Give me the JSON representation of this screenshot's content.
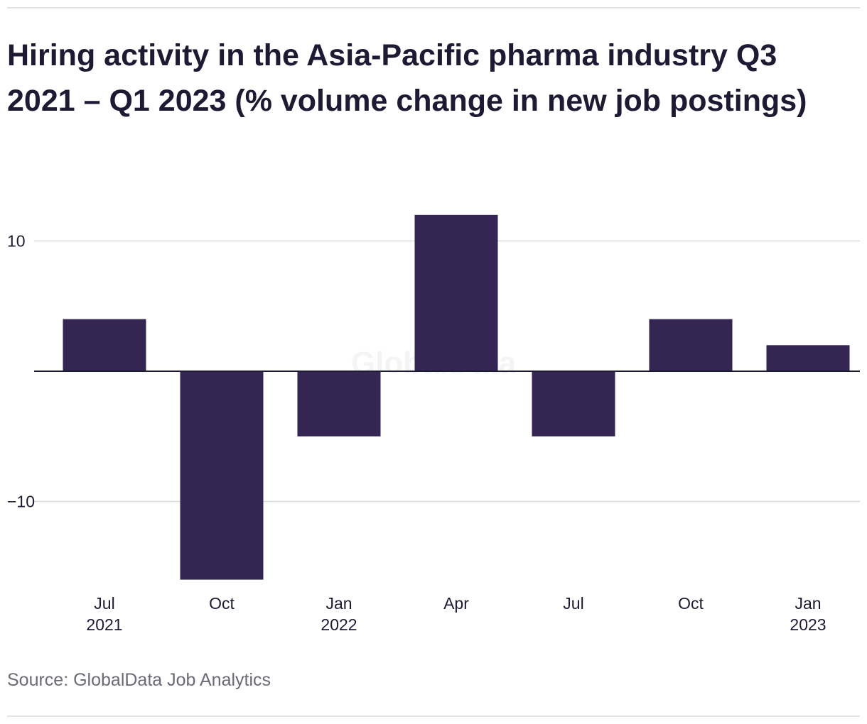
{
  "title": "Hiring activity in the Asia-Pacific pharma industry Q3 2021 – Q1 2023 (% volume change in new job postings)",
  "source": "Source: GlobalData Job Analytics",
  "watermark": "GlobalData",
  "colors": {
    "bar": "#352552",
    "grid": "#d9d9d9",
    "zero_line": "#1d1b33",
    "text": "#1d1b33",
    "source": "#6b6b78"
  },
  "chart_data": {
    "type": "bar",
    "categories": [
      "Jul 2021",
      "Oct 2021",
      "Jan 2022",
      "Apr 2022",
      "Jul 2022",
      "Oct 2022",
      "Jan 2023"
    ],
    "tick_labels": [
      [
        "Jul",
        "2021"
      ],
      [
        "Oct"
      ],
      [
        "Jan",
        "2022"
      ],
      [
        "Apr"
      ],
      [
        "Jul"
      ],
      [
        "Oct"
      ],
      [
        "Jan",
        "2023"
      ]
    ],
    "values": [
      4,
      -16,
      -5,
      12,
      -5,
      4,
      2
    ],
    "yticks": [
      10,
      -10
    ],
    "ytick_labels": [
      "10",
      "−10"
    ],
    "ylim": [
      -16,
      12
    ],
    "grid": true,
    "title": "",
    "xlabel": "",
    "ylabel": ""
  }
}
